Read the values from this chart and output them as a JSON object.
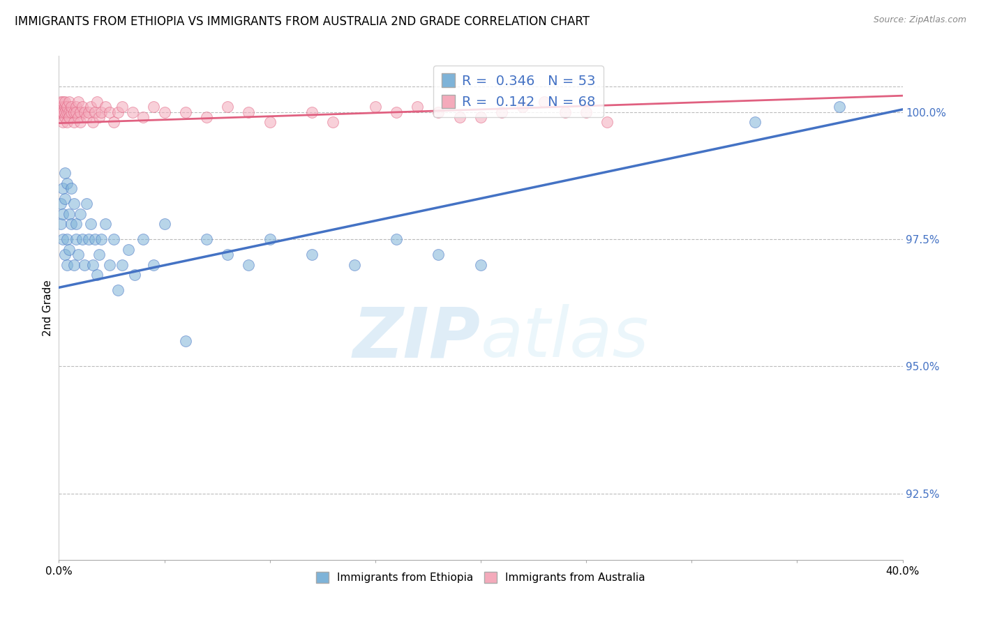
{
  "title": "IMMIGRANTS FROM ETHIOPIA VS IMMIGRANTS FROM AUSTRALIA 2ND GRADE CORRELATION CHART",
  "source": "Source: ZipAtlas.com",
  "ylabel": "2nd Grade",
  "xlim": [
    0.0,
    0.4
  ],
  "ylim": [
    91.2,
    101.1
  ],
  "yticks": [
    92.5,
    95.0,
    97.5,
    100.0
  ],
  "legend_ethiopia": "Immigrants from Ethiopia",
  "legend_australia": "Immigrants from Australia",
  "R_ethiopia": 0.346,
  "N_ethiopia": 53,
  "R_australia": 0.142,
  "N_australia": 68,
  "blue_color": "#7EB3D8",
  "pink_color": "#F4AABB",
  "blue_line_color": "#4472C4",
  "pink_line_color": "#E06080",
  "watermark_zip": "ZIP",
  "watermark_atlas": "atlas",
  "ethiopia_x": [
    0.001,
    0.001,
    0.002,
    0.002,
    0.002,
    0.003,
    0.003,
    0.003,
    0.004,
    0.004,
    0.004,
    0.005,
    0.005,
    0.006,
    0.006,
    0.007,
    0.007,
    0.008,
    0.008,
    0.009,
    0.01,
    0.011,
    0.012,
    0.013,
    0.014,
    0.015,
    0.016,
    0.017,
    0.018,
    0.019,
    0.02,
    0.022,
    0.024,
    0.026,
    0.028,
    0.03,
    0.033,
    0.036,
    0.04,
    0.045,
    0.05,
    0.06,
    0.07,
    0.08,
    0.09,
    0.1,
    0.12,
    0.14,
    0.16,
    0.18,
    0.2,
    0.33,
    0.37
  ],
  "ethiopia_y": [
    98.2,
    97.8,
    98.5,
    97.5,
    98.0,
    98.8,
    97.2,
    98.3,
    97.0,
    98.6,
    97.5,
    98.0,
    97.3,
    98.5,
    97.8,
    97.0,
    98.2,
    97.5,
    97.8,
    97.2,
    98.0,
    97.5,
    97.0,
    98.2,
    97.5,
    97.8,
    97.0,
    97.5,
    96.8,
    97.2,
    97.5,
    97.8,
    97.0,
    97.5,
    96.5,
    97.0,
    97.3,
    96.8,
    97.5,
    97.0,
    97.8,
    95.5,
    97.5,
    97.2,
    97.0,
    97.5,
    97.2,
    97.0,
    97.5,
    97.2,
    97.0,
    99.8,
    100.1
  ],
  "ethiopia_y_low": [
    0,
    0,
    0,
    0,
    0,
    0,
    0,
    0,
    0,
    0,
    0,
    0,
    0,
    0,
    0,
    0,
    0,
    0,
    0,
    0,
    0,
    0,
    0,
    0,
    0,
    0,
    0,
    0,
    0,
    0,
    0,
    0,
    0,
    0,
    0,
    0,
    0,
    0,
    0,
    0,
    0,
    0,
    0,
    0,
    0,
    0,
    0,
    0,
    0,
    0,
    0,
    0,
    0
  ],
  "australia_x": [
    0.001,
    0.001,
    0.001,
    0.001,
    0.001,
    0.002,
    0.002,
    0.002,
    0.002,
    0.002,
    0.003,
    0.003,
    0.003,
    0.003,
    0.004,
    0.004,
    0.004,
    0.005,
    0.005,
    0.005,
    0.006,
    0.006,
    0.007,
    0.007,
    0.008,
    0.008,
    0.009,
    0.009,
    0.01,
    0.01,
    0.011,
    0.012,
    0.013,
    0.014,
    0.015,
    0.016,
    0.017,
    0.018,
    0.019,
    0.02,
    0.022,
    0.024,
    0.026,
    0.028,
    0.03,
    0.035,
    0.04,
    0.045,
    0.05,
    0.06,
    0.07,
    0.08,
    0.09,
    0.1,
    0.12,
    0.15,
    0.18,
    0.2,
    0.22,
    0.25,
    0.13,
    0.16,
    0.17,
    0.19,
    0.21,
    0.23,
    0.24,
    0.26
  ],
  "australia_y": [
    100.1,
    100.0,
    99.9,
    100.2,
    100.0,
    100.0,
    99.8,
    100.1,
    100.2,
    100.0,
    100.1,
    99.9,
    100.0,
    100.2,
    100.0,
    99.8,
    100.1,
    100.0,
    100.2,
    99.9,
    100.0,
    100.1,
    99.8,
    100.0,
    100.1,
    100.0,
    99.9,
    100.2,
    100.0,
    99.8,
    100.1,
    100.0,
    99.9,
    100.0,
    100.1,
    99.8,
    100.0,
    100.2,
    99.9,
    100.0,
    100.1,
    100.0,
    99.8,
    100.0,
    100.1,
    100.0,
    99.9,
    100.1,
    100.0,
    100.0,
    99.9,
    100.1,
    100.0,
    99.8,
    100.0,
    100.1,
    100.0,
    99.9,
    100.1,
    100.0,
    99.8,
    100.0,
    100.1,
    99.9,
    100.0,
    100.2,
    100.0,
    99.8
  ],
  "blue_trendline_x": [
    0.0,
    0.4
  ],
  "blue_trendline_y": [
    96.55,
    100.05
  ],
  "pink_trendline_x": [
    0.0,
    0.4
  ],
  "pink_trendline_y": [
    99.78,
    100.32
  ]
}
